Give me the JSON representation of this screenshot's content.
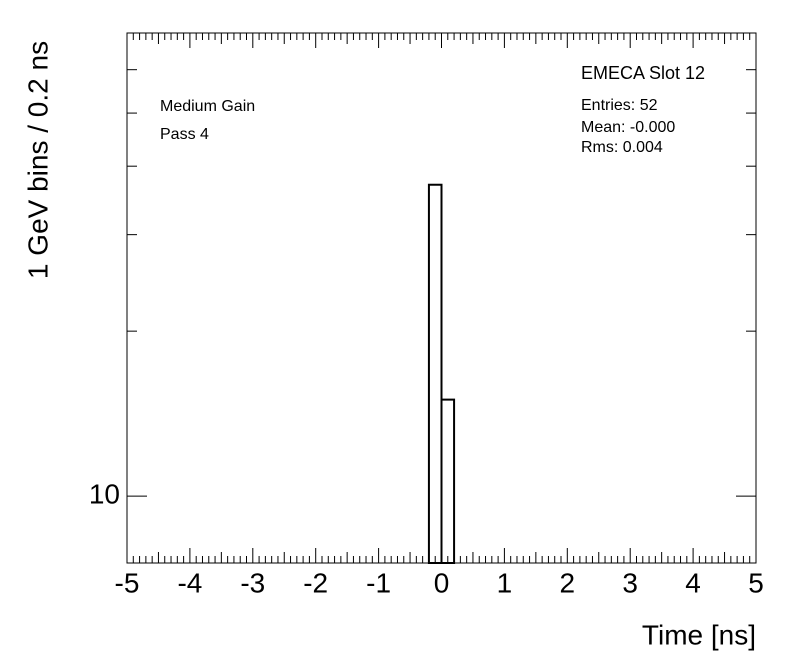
{
  "chart_data": {
    "type": "histogram",
    "x_label": "Time [ns]",
    "y_label": "1 GeV bins / 0.2 ns",
    "bins": [
      -0.2,
      0,
      0.2
    ],
    "counts": [
      37,
      15
    ],
    "xlim": [
      -5,
      5
    ],
    "xticks": [
      -5,
      -4,
      -3,
      -2,
      -1,
      0,
      1,
      2,
      3,
      4,
      5
    ],
    "ylim": [
      7.55,
      70
    ],
    "log_y": true,
    "yticks": [
      10
    ],
    "y_minor_ticks": [
      20,
      30,
      40,
      50,
      60
    ],
    "color": "#000000",
    "stats": {
      "title": "EMECA Slot 12",
      "entries": "Entries: 52",
      "mean": "Mean: -0.000",
      "rms": "Rms: 0.004"
    },
    "annotations": [
      "Medium Gain",
      "Pass 4"
    ]
  }
}
